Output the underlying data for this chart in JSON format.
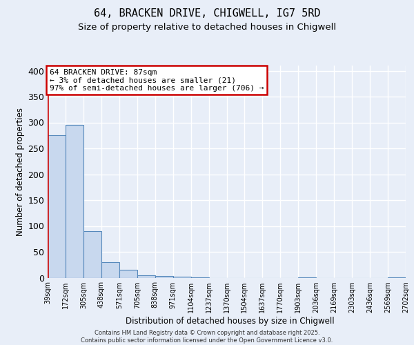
{
  "title1": "64, BRACKEN DRIVE, CHIGWELL, IG7 5RD",
  "title2": "Size of property relative to detached houses in Chigwell",
  "xlabel": "Distribution of detached houses by size in Chigwell",
  "ylabel": "Number of detached properties",
  "bar_values": [
    275,
    295,
    90,
    30,
    15,
    5,
    3,
    2,
    1,
    0,
    0,
    0,
    0,
    0,
    1,
    0,
    0,
    0,
    0,
    1
  ],
  "bar_labels": [
    "39sqm",
    "172sqm",
    "305sqm",
    "438sqm",
    "571sqm",
    "705sqm",
    "838sqm",
    "971sqm",
    "1104sqm",
    "1237sqm",
    "1370sqm",
    "1504sqm",
    "1637sqm",
    "1770sqm",
    "1903sqm",
    "2036sqm",
    "2169sqm",
    "2303sqm",
    "2436sqm",
    "2569sqm",
    "2702sqm"
  ],
  "bar_color": "#c8d8ee",
  "bar_edge_color": "#5588bb",
  "ylim": [
    0,
    410
  ],
  "yticks": [
    0,
    50,
    100,
    150,
    200,
    250,
    300,
    350,
    400
  ],
  "annotation_text": "64 BRACKEN DRIVE: 87sqm\n← 3% of detached houses are smaller (21)\n97% of semi-detached houses are larger (706) →",
  "annotation_box_color": "#cc0000",
  "marker_color": "#cc0000",
  "footer_text": "Contains HM Land Registry data © Crown copyright and database right 2025.\nContains public sector information licensed under the Open Government Licence v3.0.",
  "bg_color": "#e8eef8",
  "grid_color": "#ffffff",
  "title1_fontsize": 11,
  "title2_fontsize": 9.5
}
